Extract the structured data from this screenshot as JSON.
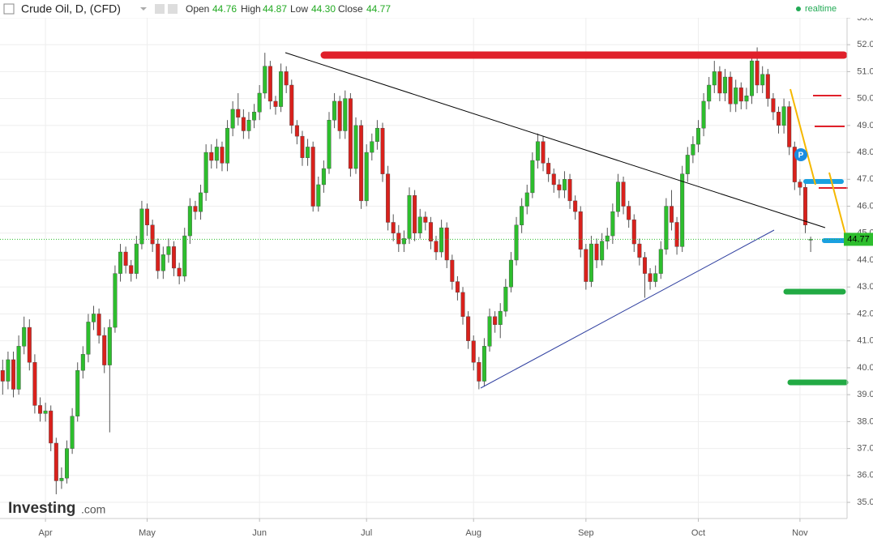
{
  "header": {
    "title": "Crude Oil, D, (CFD)",
    "open_label": "Open",
    "open": "44.76",
    "high_label": "High",
    "high": "44.87",
    "low_label": "Low",
    "low": "44.30",
    "close_label": "Close",
    "close": "44.77",
    "status": "realtime"
  },
  "chart_data": {
    "type": "candlestick",
    "candles": [
      [
        39.9,
        40.3,
        39.0,
        39.5
      ],
      [
        39.5,
        40.6,
        39.2,
        40.3
      ],
      [
        40.3,
        40.6,
        38.9,
        39.2
      ],
      [
        39.2,
        41.2,
        39.0,
        40.8
      ],
      [
        40.8,
        41.9,
        40.5,
        41.5
      ],
      [
        41.5,
        41.8,
        39.9,
        40.2
      ],
      [
        40.2,
        40.5,
        38.3,
        38.6
      ],
      [
        38.6,
        38.9,
        38.0,
        38.3
      ],
      [
        38.3,
        38.7,
        38.0,
        38.4
      ],
      [
        38.4,
        38.6,
        36.9,
        37.2
      ],
      [
        37.2,
        37.4,
        35.3,
        35.8
      ],
      [
        35.8,
        36.3,
        35.5,
        35.9
      ],
      [
        35.9,
        37.3,
        35.7,
        37.0
      ],
      [
        37.0,
        38.5,
        36.8,
        38.2
      ],
      [
        38.2,
        40.2,
        38.0,
        39.9
      ],
      [
        39.9,
        40.8,
        39.6,
        40.5
      ],
      [
        40.5,
        42.0,
        40.2,
        41.7
      ],
      [
        41.7,
        42.3,
        41.4,
        42.0
      ],
      [
        42.0,
        42.2,
        40.9,
        41.2
      ],
      [
        41.2,
        41.5,
        39.8,
        40.1
      ],
      [
        40.1,
        41.8,
        37.6,
        41.5
      ],
      [
        41.5,
        43.8,
        41.3,
        43.5
      ],
      [
        43.5,
        44.6,
        43.2,
        44.3
      ],
      [
        44.3,
        44.5,
        43.5,
        43.8
      ],
      [
        43.8,
        44.0,
        43.2,
        43.5
      ],
      [
        43.5,
        44.9,
        43.3,
        44.6
      ],
      [
        44.6,
        46.2,
        44.4,
        45.9
      ],
      [
        45.9,
        46.1,
        44.9,
        45.3
      ],
      [
        45.3,
        45.5,
        44.3,
        44.6
      ],
      [
        44.6,
        44.8,
        43.3,
        43.6
      ],
      [
        43.6,
        44.5,
        43.3,
        44.2
      ],
      [
        44.2,
        44.8,
        43.9,
        44.5
      ],
      [
        44.5,
        44.7,
        43.4,
        43.7
      ],
      [
        43.7,
        43.9,
        43.1,
        43.4
      ],
      [
        43.4,
        45.2,
        43.2,
        44.9
      ],
      [
        44.9,
        46.3,
        44.6,
        46.0
      ],
      [
        46.0,
        46.2,
        45.5,
        45.8
      ],
      [
        45.8,
        46.8,
        45.5,
        46.5
      ],
      [
        46.5,
        48.3,
        46.2,
        48.0
      ],
      [
        48.0,
        48.3,
        47.4,
        47.7
      ],
      [
        47.7,
        48.5,
        47.4,
        48.2
      ],
      [
        48.2,
        48.4,
        47.3,
        47.6
      ],
      [
        47.6,
        49.2,
        47.3,
        48.9
      ],
      [
        48.9,
        49.9,
        48.6,
        49.6
      ],
      [
        49.6,
        50.2,
        49.0,
        49.3
      ],
      [
        49.3,
        49.6,
        48.5,
        48.8
      ],
      [
        48.8,
        49.5,
        48.5,
        49.2
      ],
      [
        49.2,
        49.8,
        48.9,
        49.5
      ],
      [
        49.5,
        50.5,
        49.2,
        50.2
      ],
      [
        50.2,
        51.7,
        50.0,
        51.2
      ],
      [
        51.2,
        51.4,
        49.6,
        49.9
      ],
      [
        49.9,
        50.1,
        49.4,
        49.7
      ],
      [
        49.7,
        51.3,
        49.5,
        51.0
      ],
      [
        51.0,
        51.2,
        50.2,
        50.5
      ],
      [
        50.5,
        50.7,
        48.7,
        49.0
      ],
      [
        49.0,
        49.2,
        48.3,
        48.6
      ],
      [
        48.6,
        48.8,
        47.5,
        47.8
      ],
      [
        47.8,
        48.5,
        47.5,
        48.2
      ],
      [
        48.2,
        48.4,
        45.8,
        46.0
      ],
      [
        46.0,
        47.1,
        45.8,
        46.8
      ],
      [
        46.8,
        47.7,
        46.5,
        47.4
      ],
      [
        47.4,
        49.5,
        47.2,
        49.2
      ],
      [
        49.2,
        50.2,
        48.9,
        49.9
      ],
      [
        49.9,
        50.1,
        48.5,
        48.8
      ],
      [
        48.8,
        50.3,
        48.5,
        50.0
      ],
      [
        50.0,
        50.2,
        47.1,
        47.4
      ],
      [
        47.4,
        49.3,
        47.2,
        49.0
      ],
      [
        49.0,
        49.2,
        45.9,
        46.2
      ],
      [
        46.2,
        48.3,
        46.0,
        48.0
      ],
      [
        48.0,
        48.7,
        47.7,
        48.4
      ],
      [
        48.4,
        49.2,
        48.1,
        48.9
      ],
      [
        48.9,
        49.1,
        46.9,
        47.2
      ],
      [
        47.2,
        47.5,
        45.1,
        45.4
      ],
      [
        45.4,
        45.7,
        44.7,
        45.0
      ],
      [
        45.0,
        45.3,
        44.3,
        44.6
      ],
      [
        44.6,
        45.1,
        44.3,
        44.8
      ],
      [
        44.8,
        46.7,
        44.6,
        46.4
      ],
      [
        46.4,
        46.6,
        44.7,
        45.0
      ],
      [
        45.0,
        45.9,
        44.8,
        45.6
      ],
      [
        45.6,
        45.8,
        45.1,
        45.4
      ],
      [
        45.4,
        45.6,
        44.4,
        44.7
      ],
      [
        44.7,
        44.9,
        44.0,
        44.3
      ],
      [
        44.3,
        45.5,
        44.1,
        45.2
      ],
      [
        45.2,
        45.4,
        43.7,
        44.0
      ],
      [
        44.0,
        44.2,
        42.9,
        43.2
      ],
      [
        43.2,
        43.4,
        42.5,
        42.8
      ],
      [
        42.8,
        43.0,
        41.6,
        41.9
      ],
      [
        41.9,
        42.1,
        40.7,
        41.0
      ],
      [
        41.0,
        41.2,
        39.9,
        40.2
      ],
      [
        40.2,
        40.4,
        39.2,
        39.5
      ],
      [
        39.5,
        41.1,
        39.3,
        40.8
      ],
      [
        40.8,
        42.2,
        40.6,
        41.9
      ],
      [
        41.9,
        42.1,
        41.3,
        41.6
      ],
      [
        41.6,
        42.4,
        41.1,
        42.1
      ],
      [
        42.1,
        43.3,
        41.9,
        43.0
      ],
      [
        43.0,
        44.3,
        42.8,
        44.0
      ],
      [
        44.0,
        45.6,
        43.8,
        45.3
      ],
      [
        45.3,
        46.3,
        45.0,
        46.0
      ],
      [
        46.0,
        46.8,
        45.7,
        46.5
      ],
      [
        46.5,
        48.0,
        46.3,
        47.7
      ],
      [
        47.7,
        48.7,
        47.4,
        48.4
      ],
      [
        48.4,
        48.6,
        47.3,
        47.6
      ],
      [
        47.6,
        47.8,
        46.9,
        47.2
      ],
      [
        47.2,
        47.4,
        46.5,
        46.8
      ],
      [
        46.8,
        47.0,
        46.3,
        46.6
      ],
      [
        46.6,
        47.3,
        46.3,
        47.0
      ],
      [
        47.0,
        47.2,
        45.9,
        46.2
      ],
      [
        46.2,
        46.4,
        45.5,
        45.8
      ],
      [
        45.8,
        46.0,
        44.1,
        44.4
      ],
      [
        44.4,
        44.6,
        42.9,
        43.2
      ],
      [
        43.2,
        44.9,
        43.0,
        44.6
      ],
      [
        44.6,
        44.8,
        43.7,
        44.0
      ],
      [
        44.0,
        45.0,
        43.8,
        44.7
      ],
      [
        44.7,
        45.2,
        44.4,
        44.9
      ],
      [
        44.9,
        46.1,
        44.6,
        45.8
      ],
      [
        45.8,
        47.2,
        45.6,
        46.9
      ],
      [
        46.9,
        47.1,
        45.7,
        46.0
      ],
      [
        46.0,
        46.2,
        45.2,
        45.5
      ],
      [
        45.5,
        45.7,
        44.3,
        44.6
      ],
      [
        44.6,
        44.8,
        43.8,
        44.1
      ],
      [
        44.1,
        44.3,
        42.6,
        43.5
      ],
      [
        43.5,
        43.7,
        42.9,
        43.2
      ],
      [
        43.2,
        43.8,
        43.0,
        43.5
      ],
      [
        43.5,
        44.7,
        43.3,
        44.4
      ],
      [
        44.4,
        46.3,
        44.2,
        46.0
      ],
      [
        46.0,
        46.6,
        45.1,
        45.4
      ],
      [
        45.4,
        45.6,
        44.2,
        44.5
      ],
      [
        44.5,
        47.5,
        44.3,
        47.2
      ],
      [
        47.2,
        48.2,
        46.9,
        47.9
      ],
      [
        47.9,
        48.6,
        47.6,
        48.3
      ],
      [
        48.3,
        49.2,
        48.0,
        48.9
      ],
      [
        48.9,
        50.2,
        48.6,
        49.9
      ],
      [
        49.9,
        50.8,
        49.6,
        50.5
      ],
      [
        50.5,
        51.4,
        50.2,
        51.0
      ],
      [
        51.0,
        51.2,
        49.9,
        50.2
      ],
      [
        50.2,
        51.1,
        49.9,
        50.8
      ],
      [
        50.8,
        51.0,
        49.5,
        49.8
      ],
      [
        49.8,
        50.7,
        49.5,
        50.4
      ],
      [
        50.4,
        50.6,
        49.6,
        49.9
      ],
      [
        49.9,
        50.4,
        49.6,
        50.1
      ],
      [
        50.1,
        51.7,
        49.8,
        51.4
      ],
      [
        51.4,
        51.9,
        50.2,
        50.5
      ],
      [
        50.5,
        51.2,
        50.2,
        50.9
      ],
      [
        50.9,
        51.1,
        49.7,
        50.0
      ],
      [
        50.0,
        50.2,
        49.2,
        49.5
      ],
      [
        49.5,
        49.7,
        48.7,
        49.0
      ],
      [
        49.0,
        50.0,
        48.7,
        49.7
      ],
      [
        49.7,
        49.9,
        47.9,
        48.2
      ],
      [
        48.2,
        48.4,
        46.6,
        46.9
      ],
      [
        46.9,
        47.0,
        46.4,
        46.7
      ],
      [
        46.7,
        46.9,
        45.0,
        45.3
      ],
      [
        44.76,
        44.87,
        44.3,
        44.77
      ]
    ],
    "xlim": [
      -0.5,
      157.8
    ],
    "xticks": [
      {
        "value": 8,
        "label": "Apr"
      },
      {
        "value": 27,
        "label": "May"
      },
      {
        "value": 48,
        "label": "Jun"
      },
      {
        "value": 68,
        "label": "Jul"
      },
      {
        "value": 88,
        "label": "Aug"
      },
      {
        "value": 109,
        "label": "Sep"
      },
      {
        "value": 130,
        "label": "Oct"
      },
      {
        "value": 149,
        "label": "Nov"
      }
    ],
    "ylim": [
      34.4,
      53.66
    ],
    "yticks": [
      {
        "value": 35,
        "label": "35.00"
      },
      {
        "value": 36,
        "label": "36.00"
      },
      {
        "value": 37,
        "label": "37.00"
      },
      {
        "value": 38,
        "label": "38.00"
      },
      {
        "value": 39,
        "label": "39.00"
      },
      {
        "value": 40,
        "label": "40.00"
      },
      {
        "value": 41,
        "label": "41.00"
      },
      {
        "value": 42,
        "label": "42.00"
      },
      {
        "value": 43,
        "label": "43.00"
      },
      {
        "value": 44,
        "label": "44.00"
      },
      {
        "value": 45,
        "label": "45.00"
      },
      {
        "value": 46,
        "label": "46.00"
      },
      {
        "value": 47,
        "label": "47.00"
      },
      {
        "value": 48,
        "label": "48.00"
      },
      {
        "value": 49,
        "label": "49.00"
      },
      {
        "value": 50,
        "label": "50.00"
      },
      {
        "value": 51,
        "label": "51.00"
      },
      {
        "value": 52,
        "label": "52.00"
      },
      {
        "value": 53,
        "label": "53.00"
      }
    ],
    "grid": true,
    "colors": {
      "up": "#2dbe2d",
      "down": "#d9211c"
    }
  },
  "brand": {
    "name": "Investing",
    "suffix": ".com"
  }
}
